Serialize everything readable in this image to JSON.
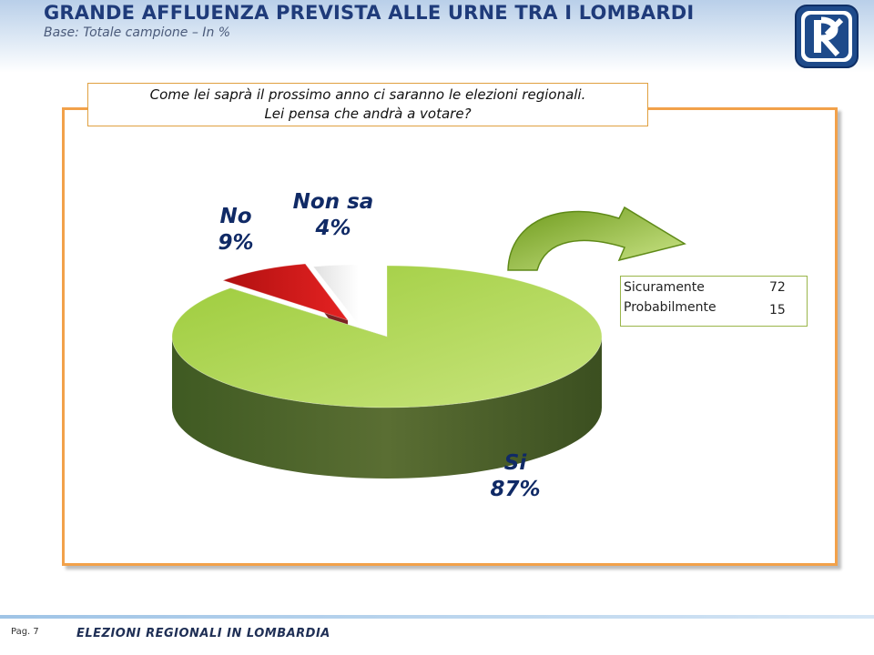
{
  "header": {
    "title": "GRANDE AFFLUENZA PREVISTA ALLE URNE TRA I LOMBARDI",
    "subtitle": "Base: Totale campione – In %"
  },
  "logo": {
    "icon": "rk-logo-icon",
    "color": "#1e4a8a"
  },
  "question": {
    "line1": "Come lei saprà il prossimo anno ci saranno le elezioni regionali.",
    "line2": "Lei pensa che andrà a votare?"
  },
  "chart_data": {
    "type": "pie",
    "unit": "%",
    "slices": [
      {
        "name": "Si",
        "value": 87,
        "label": "87%",
        "color": "#a8d14a"
      },
      {
        "name": "No",
        "value": 9,
        "label": "9%",
        "color": "#d01818"
      },
      {
        "name": "Non sa",
        "value": 4,
        "label": "4%",
        "color": "#cfcfcf"
      }
    ],
    "breakdown_of": "Si",
    "breakdown": [
      {
        "label": "Sicuramente",
        "value": "72"
      },
      {
        "label": "Probabilmente",
        "value": "15"
      }
    ]
  },
  "footer": {
    "page": "Pag. 7",
    "text": "ELEZIONI REGIONALI IN LOMBARDIA"
  }
}
